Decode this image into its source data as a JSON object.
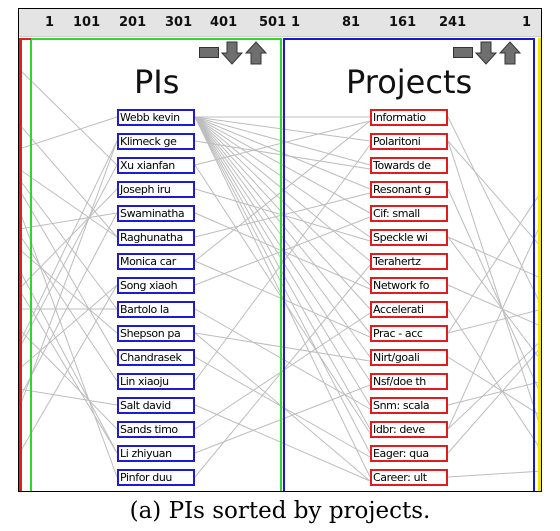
{
  "ruler": {
    "ticks": [
      "1",
      "101",
      "201",
      "301",
      "401",
      "501",
      "1",
      "81",
      "161",
      "241",
      "1"
    ]
  },
  "colors": {
    "pi_border": "#1c1cd6",
    "project_border": "#e01c1c",
    "pi_panel": "#2fd62f",
    "project_panel": "#1818d0",
    "edge_left": "#e02020",
    "edge_right": "#f2e600",
    "link": "#bdbdbd"
  },
  "panels": {
    "pis": {
      "title": "PIs",
      "controls": [
        "collapse-icon",
        "arrow-down-icon",
        "arrow-up-icon"
      ],
      "items": [
        "Webb kevin",
        "Klimeck ge",
        "Xu xianfan",
        "Joseph iru",
        "Swaminatha",
        "Raghunatha",
        "Monica car",
        "Song xiaoh",
        "Bartolo la",
        "Shepson pa",
        "Chandrasek",
        "Lin xiaoju",
        "Salt david",
        "Sands timo",
        "Li zhiyuan",
        "Pinfor duu"
      ]
    },
    "projects": {
      "title": "Projects",
      "controls": [
        "collapse-icon",
        "arrow-down-icon",
        "arrow-up-icon"
      ],
      "items": [
        "Informatio",
        "Polaritoni",
        "Towards de",
        "Resonant g",
        "Cif: small",
        "Speckle wi",
        "Terahertz",
        "Network fo",
        "Accelerati",
        "Prac - acc",
        "Nirt/goali",
        "Nsf/doe th",
        "Snm: scala",
        "Idbr: deve",
        "Eager: qua",
        "Career: ult"
      ]
    }
  },
  "caption": "(a)  PIs sorted by projects."
}
